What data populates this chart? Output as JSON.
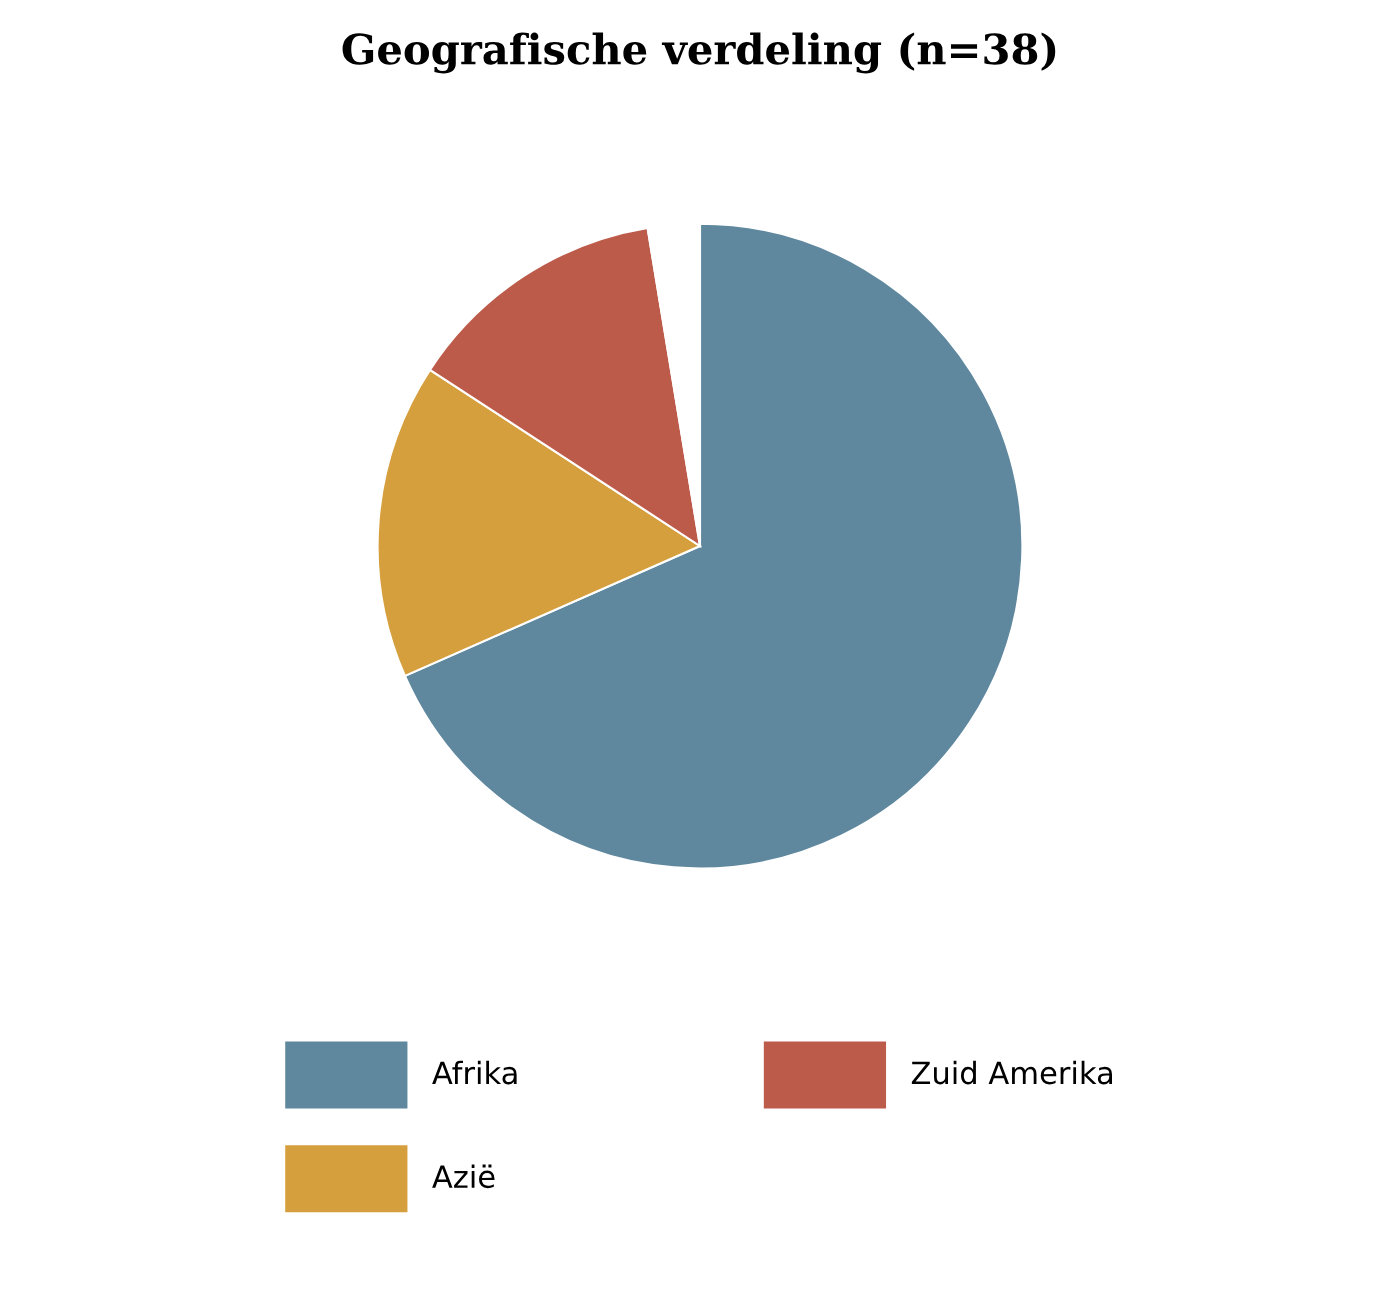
{
  "chart_data": {
    "type": "pie",
    "title": "Geografische verdeling (n=38)",
    "categories": [
      "Afrika",
      "Azië",
      "Zuid Amerika",
      null
    ],
    "values": [
      68.4,
      15.8,
      13.2,
      2.6
    ],
    "colors": [
      "#5f889f",
      "#d69f3d",
      "#bd5b4b",
      "#ffffff"
    ],
    "legend": "bottom"
  }
}
